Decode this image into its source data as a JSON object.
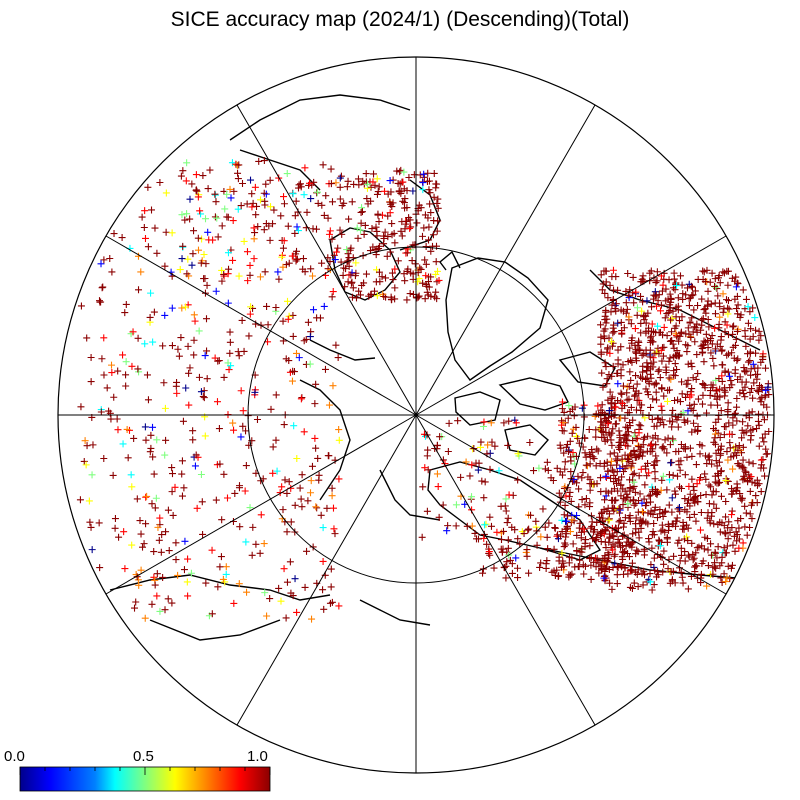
{
  "title": "SICE accuracy map (2024/1) (Descending)(Total)",
  "colorbar": {
    "min_label": "0.0",
    "mid_label": "0.5",
    "max_label": "1.0",
    "colors": [
      "#00008b",
      "#0000ff",
      "#0080ff",
      "#00ffff",
      "#80ff80",
      "#ffff00",
      "#ff8000",
      "#ff0000",
      "#8b0000"
    ]
  },
  "map": {
    "projection": "north-polar-stereographic",
    "meridian_count": 12,
    "latitude_circle": true,
    "marker": "plus"
  }
}
